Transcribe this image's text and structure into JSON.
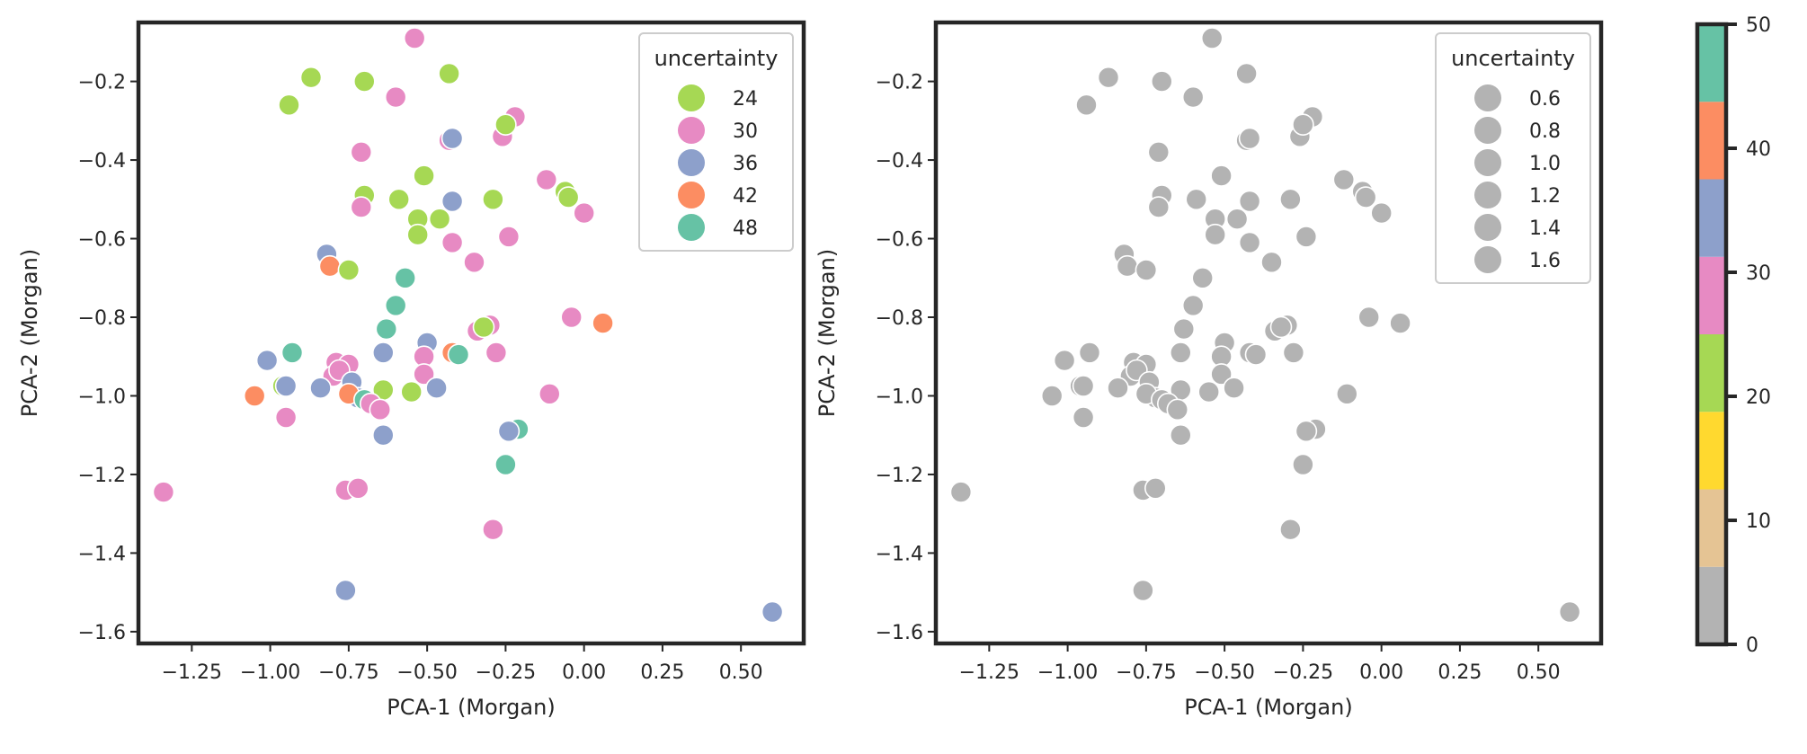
{
  "chart_data": [
    {
      "type": "scatter",
      "panel": "left",
      "title": "",
      "xlabel": "PCA-1 (Morgan)",
      "ylabel": "PCA-2 (Morgan)",
      "xlim": [
        -1.42,
        0.7
      ],
      "ylim": [
        -1.63,
        -0.05
      ],
      "xticks": [
        -1.25,
        -1.0,
        -0.75,
        -0.5,
        -0.25,
        0.0,
        0.25,
        0.5
      ],
      "xtick_labels": [
        "−1.25",
        "−1.00",
        "−0.75",
        "−0.50",
        "−0.25",
        "0.00",
        "0.25",
        "0.50"
      ],
      "yticks": [
        -0.2,
        -0.4,
        -0.6,
        -0.8,
        -1.0,
        -1.2,
        -1.4,
        -1.6
      ],
      "ytick_labels": [
        "−0.2",
        "−0.4",
        "−0.6",
        "−0.8",
        "−1.0",
        "−1.2",
        "−1.4",
        "−1.6"
      ],
      "legend": {
        "title": "uncertainty",
        "location": "top-right",
        "entries": [
          {
            "label": "24",
            "color": "#a6d854"
          },
          {
            "label": "30",
            "color": "#e78ac3"
          },
          {
            "label": "36",
            "color": "#8da0cb"
          },
          {
            "label": "42",
            "color": "#fc8d62"
          },
          {
            "label": "48",
            "color": "#66c2a5"
          }
        ]
      },
      "points": [
        {
          "x": -0.54,
          "y": -0.09,
          "u": 30
        },
        {
          "x": -0.87,
          "y": -0.19,
          "u": 24
        },
        {
          "x": -0.7,
          "y": -0.2,
          "u": 24
        },
        {
          "x": -0.43,
          "y": -0.18,
          "u": 24
        },
        {
          "x": -0.94,
          "y": -0.26,
          "u": 24
        },
        {
          "x": -0.6,
          "y": -0.24,
          "u": 30
        },
        {
          "x": -0.22,
          "y": -0.29,
          "u": 30
        },
        {
          "x": -0.26,
          "y": -0.34,
          "u": 30
        },
        {
          "x": -0.25,
          "y": -0.31,
          "u": 24
        },
        {
          "x": -0.43,
          "y": -0.35,
          "u": 30
        },
        {
          "x": -0.42,
          "y": -0.345,
          "u": 36
        },
        {
          "x": -0.71,
          "y": -0.38,
          "u": 30
        },
        {
          "x": -0.51,
          "y": -0.44,
          "u": 24
        },
        {
          "x": -0.12,
          "y": -0.45,
          "u": 30
        },
        {
          "x": -0.7,
          "y": -0.49,
          "u": 24
        },
        {
          "x": -0.71,
          "y": -0.52,
          "u": 30
        },
        {
          "x": -0.59,
          "y": -0.5,
          "u": 24
        },
        {
          "x": -0.42,
          "y": -0.505,
          "u": 36
        },
        {
          "x": -0.29,
          "y": -0.5,
          "u": 24
        },
        {
          "x": -0.06,
          "y": -0.48,
          "u": 24
        },
        {
          "x": -0.05,
          "y": -0.495,
          "u": 24
        },
        {
          "x": 0.0,
          "y": -0.535,
          "u": 30
        },
        {
          "x": -0.53,
          "y": -0.55,
          "u": 24
        },
        {
          "x": -0.46,
          "y": -0.55,
          "u": 24
        },
        {
          "x": -0.53,
          "y": -0.59,
          "u": 24
        },
        {
          "x": -0.42,
          "y": -0.61,
          "u": 30
        },
        {
          "x": -0.24,
          "y": -0.595,
          "u": 30
        },
        {
          "x": -0.82,
          "y": -0.64,
          "u": 36
        },
        {
          "x": -0.81,
          "y": -0.67,
          "u": 42
        },
        {
          "x": -0.75,
          "y": -0.68,
          "u": 24
        },
        {
          "x": -0.35,
          "y": -0.66,
          "u": 30
        },
        {
          "x": -0.57,
          "y": -0.7,
          "u": 48
        },
        {
          "x": -0.6,
          "y": -0.77,
          "u": 48
        },
        {
          "x": -0.04,
          "y": -0.8,
          "u": 30
        },
        {
          "x": 0.06,
          "y": -0.815,
          "u": 42
        },
        {
          "x": -0.63,
          "y": -0.83,
          "u": 48
        },
        {
          "x": -0.34,
          "y": -0.835,
          "u": 30
        },
        {
          "x": -0.3,
          "y": -0.82,
          "u": 30
        },
        {
          "x": -0.32,
          "y": -0.825,
          "u": 24
        },
        {
          "x": -0.64,
          "y": -0.89,
          "u": 36
        },
        {
          "x": -0.5,
          "y": -0.865,
          "u": 36
        },
        {
          "x": -0.42,
          "y": -0.89,
          "u": 42
        },
        {
          "x": -0.4,
          "y": -0.895,
          "u": 48
        },
        {
          "x": -0.28,
          "y": -0.89,
          "u": 30
        },
        {
          "x": -0.51,
          "y": -0.9,
          "u": 30
        },
        {
          "x": -0.51,
          "y": -0.945,
          "u": 30
        },
        {
          "x": -0.93,
          "y": -0.89,
          "u": 48
        },
        {
          "x": -1.01,
          "y": -0.91,
          "u": 36
        },
        {
          "x": -0.79,
          "y": -0.915,
          "u": 30
        },
        {
          "x": -0.75,
          "y": -0.92,
          "u": 30
        },
        {
          "x": -0.8,
          "y": -0.95,
          "u": 30
        },
        {
          "x": -0.78,
          "y": -0.935,
          "u": 30
        },
        {
          "x": -0.74,
          "y": -0.965,
          "u": 36
        },
        {
          "x": -0.96,
          "y": -0.975,
          "u": 24
        },
        {
          "x": -0.95,
          "y": -0.975,
          "u": 36
        },
        {
          "x": -0.64,
          "y": -0.985,
          "u": 24
        },
        {
          "x": -0.55,
          "y": -0.99,
          "u": 24
        },
        {
          "x": -0.47,
          "y": -0.98,
          "u": 36
        },
        {
          "x": -0.84,
          "y": -0.98,
          "u": 36
        },
        {
          "x": -1.05,
          "y": -1.0,
          "u": 42
        },
        {
          "x": -0.72,
          "y": -1.005,
          "u": 36
        },
        {
          "x": -0.75,
          "y": -0.995,
          "u": 42
        },
        {
          "x": -0.7,
          "y": -1.01,
          "u": 48
        },
        {
          "x": -0.68,
          "y": -1.02,
          "u": 30
        },
        {
          "x": -0.65,
          "y": -1.035,
          "u": 30
        },
        {
          "x": -0.11,
          "y": -0.995,
          "u": 30
        },
        {
          "x": -0.95,
          "y": -1.055,
          "u": 30
        },
        {
          "x": -0.64,
          "y": -1.1,
          "u": 36
        },
        {
          "x": -0.21,
          "y": -1.085,
          "u": 48
        },
        {
          "x": -0.24,
          "y": -1.09,
          "u": 36
        },
        {
          "x": -0.25,
          "y": -1.175,
          "u": 48
        },
        {
          "x": -1.34,
          "y": -1.245,
          "u": 30
        },
        {
          "x": -0.76,
          "y": -1.24,
          "u": 30
        },
        {
          "x": -0.72,
          "y": -1.235,
          "u": 30
        },
        {
          "x": -0.29,
          "y": -1.34,
          "u": 30
        },
        {
          "x": -0.76,
          "y": -1.495,
          "u": 36
        },
        {
          "x": 0.6,
          "y": -1.55,
          "u": 36
        }
      ]
    },
    {
      "type": "scatter",
      "panel": "right",
      "title": "",
      "xlabel": "PCA-1 (Morgan)",
      "ylabel": "PCA-2 (Morgan)",
      "xlim": [
        -1.42,
        0.7
      ],
      "ylim": [
        -1.63,
        -0.05
      ],
      "xticks": [
        -1.25,
        -1.0,
        -0.75,
        -0.5,
        -0.25,
        0.0,
        0.25,
        0.5
      ],
      "xtick_labels": [
        "−1.25",
        "−1.00",
        "−0.75",
        "−0.50",
        "−0.25",
        "0.00",
        "0.25",
        "0.50"
      ],
      "yticks": [
        -0.2,
        -0.4,
        -0.6,
        -0.8,
        -1.0,
        -1.2,
        -1.4,
        -1.6
      ],
      "ytick_labels": [
        "−0.2",
        "−0.4",
        "−0.6",
        "−0.8",
        "−1.0",
        "−1.2",
        "−1.4",
        "−1.6"
      ],
      "point_color": "#b3b3b3",
      "legend": {
        "title": "uncertainty",
        "location": "top-right",
        "entries": [
          {
            "label": "0.6"
          },
          {
            "label": "0.8"
          },
          {
            "label": "1.0"
          },
          {
            "label": "1.2"
          },
          {
            "label": "1.4"
          },
          {
            "label": "1.6"
          }
        ]
      },
      "points_same_as": "left"
    },
    {
      "type": "colorbar",
      "range": [
        0,
        50
      ],
      "ticks": [
        0,
        10,
        20,
        30,
        40,
        50
      ],
      "tick_labels": [
        "0",
        "10",
        "20",
        "30",
        "40",
        "50"
      ],
      "segments": [
        {
          "from": 0,
          "to": 6.25,
          "color": "#b3b3b3"
        },
        {
          "from": 6.25,
          "to": 12.5,
          "color": "#e5c494"
        },
        {
          "from": 12.5,
          "to": 18.75,
          "color": "#ffd92f"
        },
        {
          "from": 18.75,
          "to": 25,
          "color": "#a6d854"
        },
        {
          "from": 25,
          "to": 31.25,
          "color": "#e78ac3"
        },
        {
          "from": 31.25,
          "to": 37.5,
          "color": "#8da0cb"
        },
        {
          "from": 37.5,
          "to": 43.75,
          "color": "#fc8d62"
        },
        {
          "from": 43.75,
          "to": 50,
          "color": "#66c2a5"
        }
      ]
    }
  ]
}
